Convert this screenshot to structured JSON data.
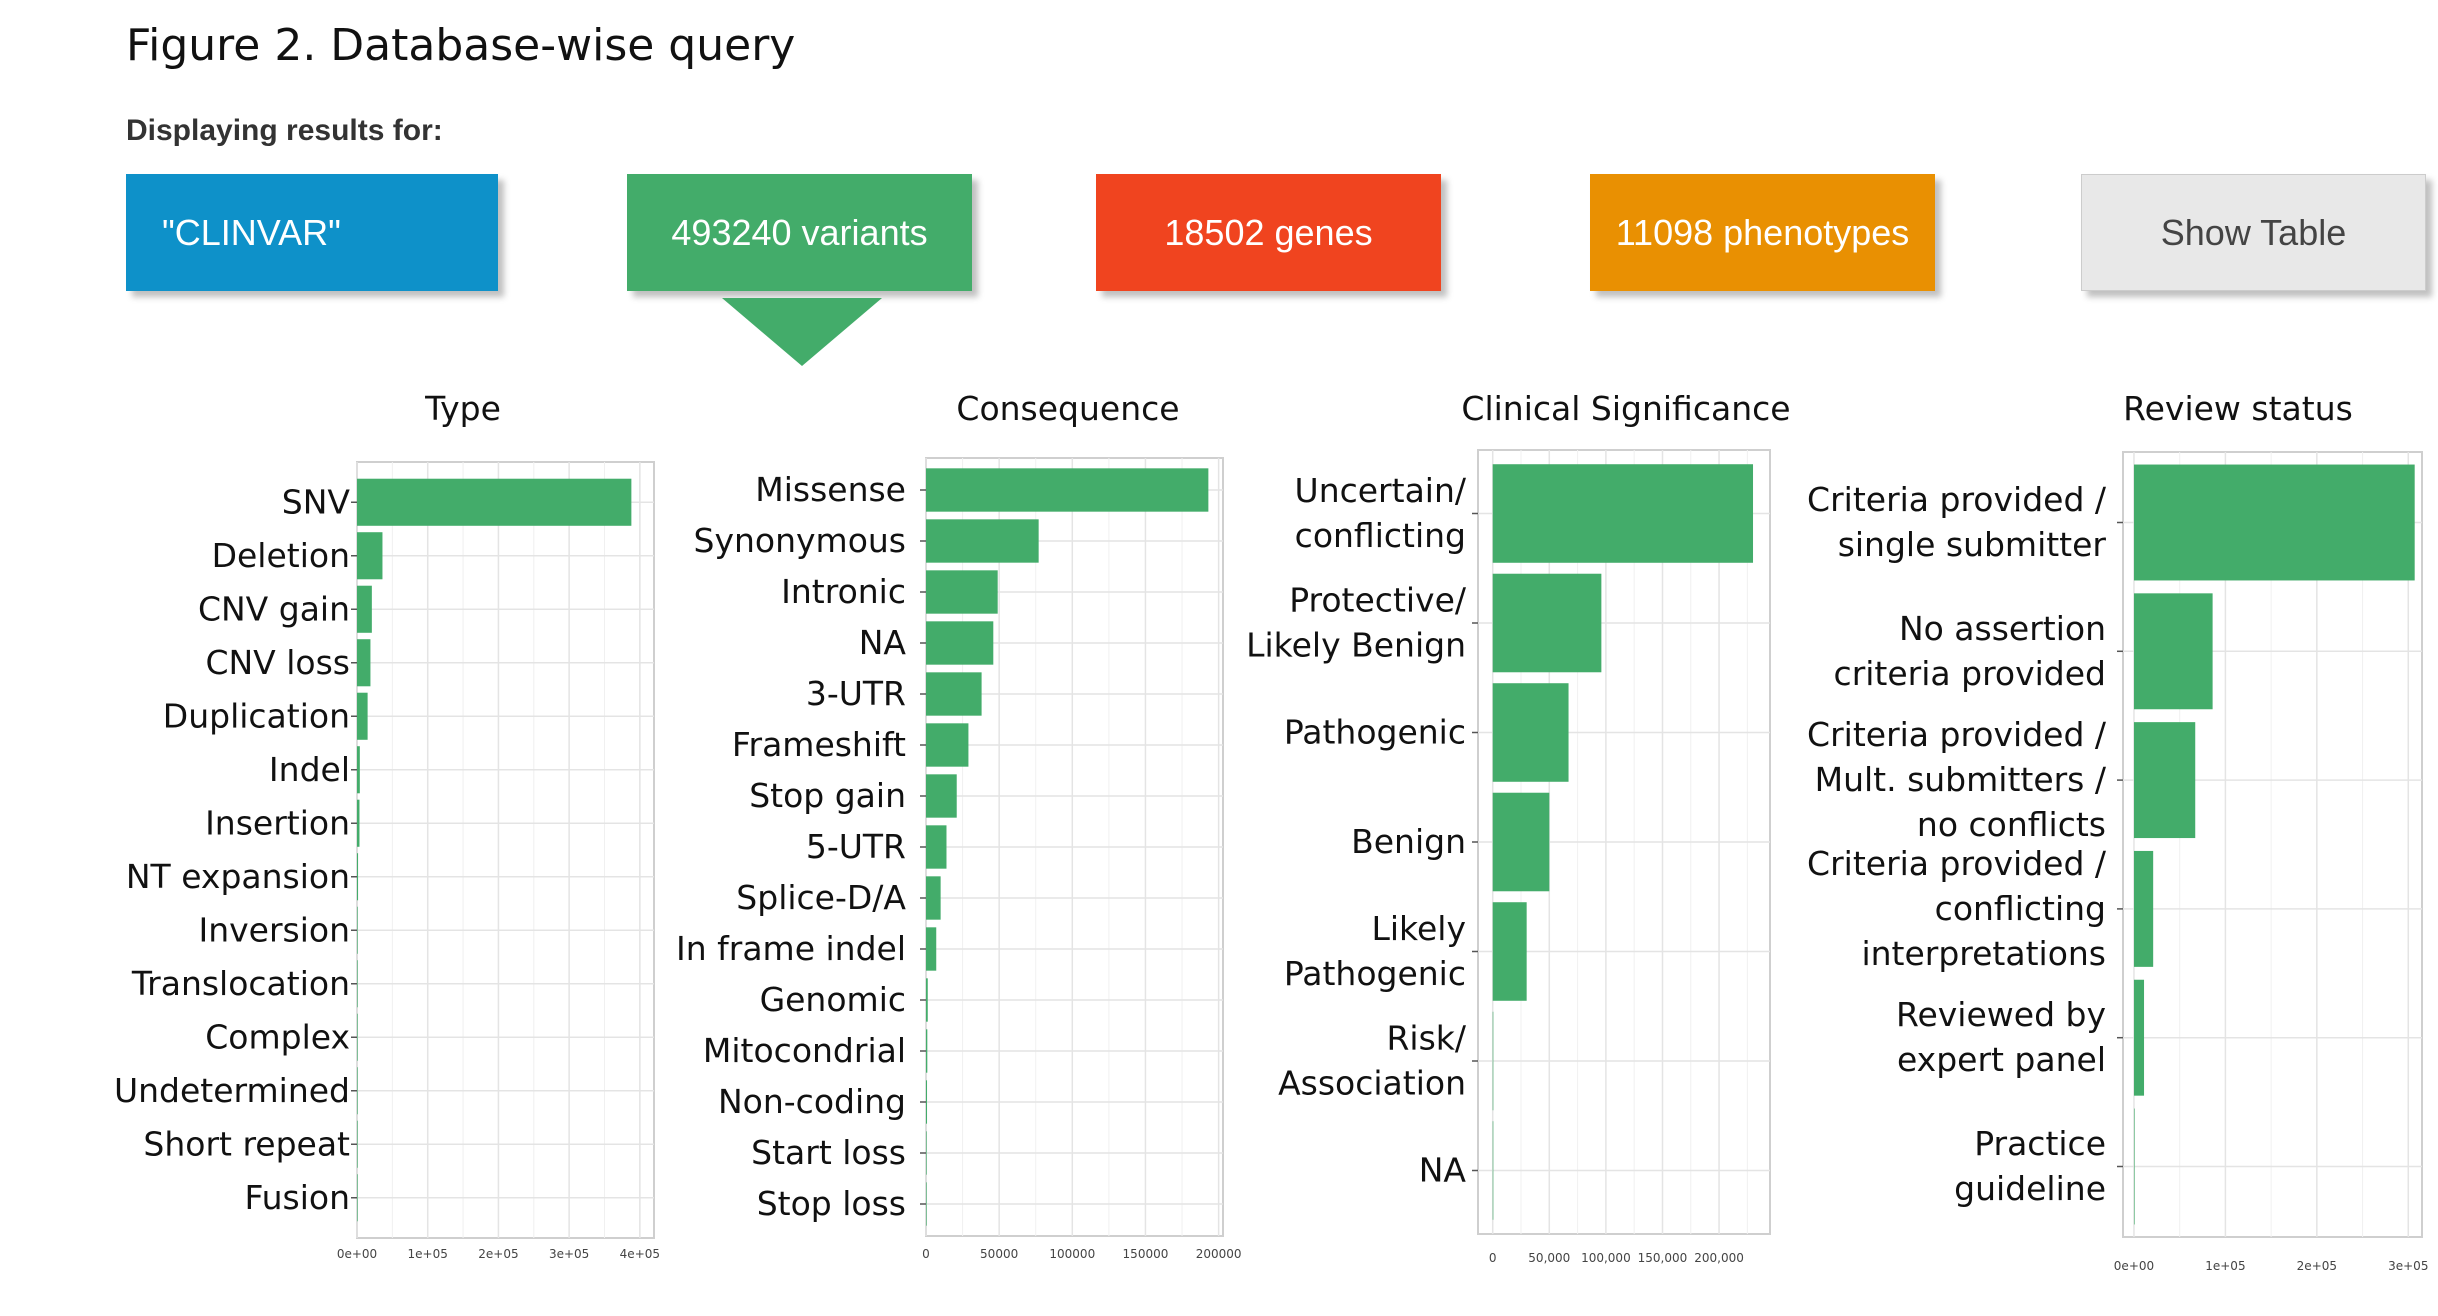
{
  "figure_title": "Figure 2. Database-wise query",
  "subtitle": "Displaying results for:",
  "buttons": {
    "query": "\"CLINVAR\"",
    "variants": "493240 variants",
    "genes": "18502 genes",
    "phenotypes": "11098 phenotypes",
    "table": "Show Table"
  },
  "colors": {
    "query": "#0e91c9",
    "variants": "#43ac6a",
    "genes": "#f0441f",
    "phenotypes": "#e99002",
    "table": "#e8e8e8",
    "bar": "#43ac6a"
  },
  "chart_data": [
    {
      "type": "bar",
      "orientation": "horizontal",
      "title": "Type",
      "categories": [
        {
          "lines": [
            "SNV"
          ]
        },
        {
          "lines": [
            "Deletion"
          ]
        },
        {
          "lines": [
            "CNV gain"
          ]
        },
        {
          "lines": [
            "CNV loss"
          ]
        },
        {
          "lines": [
            "Duplication"
          ]
        },
        {
          "lines": [
            "Indel"
          ]
        },
        {
          "lines": [
            "Insertion"
          ]
        },
        {
          "lines": [
            "NT expansion"
          ]
        },
        {
          "lines": [
            "Inversion"
          ]
        },
        {
          "lines": [
            "Translocation"
          ]
        },
        {
          "lines": [
            "Complex"
          ]
        },
        {
          "lines": [
            "Undetermined"
          ]
        },
        {
          "lines": [
            "Short repeat"
          ]
        },
        {
          "lines": [
            "Fusion"
          ]
        }
      ],
      "values": [
        388000,
        36000,
        21000,
        19000,
        15000,
        4000,
        3500,
        1500,
        300,
        200,
        150,
        100,
        80,
        50
      ],
      "xlim": [
        0,
        420000
      ],
      "ticks": [
        0,
        100000,
        200000,
        300000,
        400000
      ],
      "tick_labels": [
        "0e+00",
        "1e+05",
        "2e+05",
        "3e+05",
        "4e+05"
      ],
      "grid": true
    },
    {
      "type": "bar",
      "orientation": "horizontal",
      "title": "Consequence",
      "categories": [
        {
          "lines": [
            "Missense"
          ]
        },
        {
          "lines": [
            "Synonymous"
          ]
        },
        {
          "lines": [
            "Intronic"
          ]
        },
        {
          "lines": [
            "NA"
          ]
        },
        {
          "lines": [
            "3-UTR"
          ]
        },
        {
          "lines": [
            "Frameshift"
          ]
        },
        {
          "lines": [
            "Stop gain"
          ]
        },
        {
          "lines": [
            "5-UTR"
          ]
        },
        {
          "lines": [
            "Splice-D/A"
          ]
        },
        {
          "lines": [
            "In frame indel"
          ]
        },
        {
          "lines": [
            "Genomic"
          ]
        },
        {
          "lines": [
            "Mitocondrial"
          ]
        },
        {
          "lines": [
            "Non-coding"
          ]
        },
        {
          "lines": [
            "Start loss"
          ]
        },
        {
          "lines": [
            "Stop loss"
          ]
        }
      ],
      "values": [
        193000,
        77000,
        49000,
        46000,
        38000,
        29000,
        21000,
        14000,
        10000,
        7000,
        1200,
        900,
        700,
        300,
        200
      ],
      "xlim": [
        0,
        203000
      ],
      "ticks": [
        0,
        50000,
        100000,
        150000,
        200000
      ],
      "tick_labels": [
        "0",
        "50000",
        "100000",
        "150000",
        "200000"
      ],
      "grid": true
    },
    {
      "type": "bar",
      "orientation": "horizontal",
      "title": "Clinical Significance",
      "categories": [
        {
          "lines": [
            "Uncertain/",
            "conflicting"
          ]
        },
        {
          "lines": [
            "Protective/",
            "Likely Benign"
          ]
        },
        {
          "lines": [
            "Pathogenic"
          ]
        },
        {
          "lines": [
            "Benign"
          ]
        },
        {
          "lines": [
            "Likely",
            "Pathogenic"
          ]
        },
        {
          "lines": [
            "Risk/",
            "Association"
          ]
        },
        {
          "lines": [
            "NA"
          ]
        }
      ],
      "values": [
        230000,
        96000,
        67000,
        50000,
        30000,
        300,
        100
      ],
      "xlim": [
        -13000,
        245000
      ],
      "ticks": [
        0,
        50000,
        100000,
        150000,
        200000
      ],
      "tick_labels": [
        "0",
        "50,000",
        "100,000",
        "150,000",
        "200,000"
      ],
      "grid": true
    },
    {
      "type": "bar",
      "orientation": "horizontal",
      "title": "Review status",
      "categories": [
        {
          "lines": [
            "Criteria provided /",
            "single submitter"
          ]
        },
        {
          "lines": [
            "No assertion",
            "criteria provided"
          ]
        },
        {
          "lines": [
            "Criteria provided /",
            "Mult. submitters /",
            "no conflicts"
          ]
        },
        {
          "lines": [
            "Criteria provided /",
            "conflicting",
            "interpretations"
          ]
        },
        {
          "lines": [
            "Reviewed by",
            "expert panel"
          ]
        },
        {
          "lines": [
            "Practice",
            "guideline"
          ]
        }
      ],
      "values": [
        307000,
        86000,
        67000,
        21000,
        11000,
        100
      ],
      "xlim": [
        -12000,
        315000
      ],
      "ticks": [
        0,
        100000,
        200000,
        300000
      ],
      "tick_labels": [
        "0e+00",
        "1e+05",
        "2e+05",
        "3e+05"
      ],
      "grid": true
    }
  ]
}
